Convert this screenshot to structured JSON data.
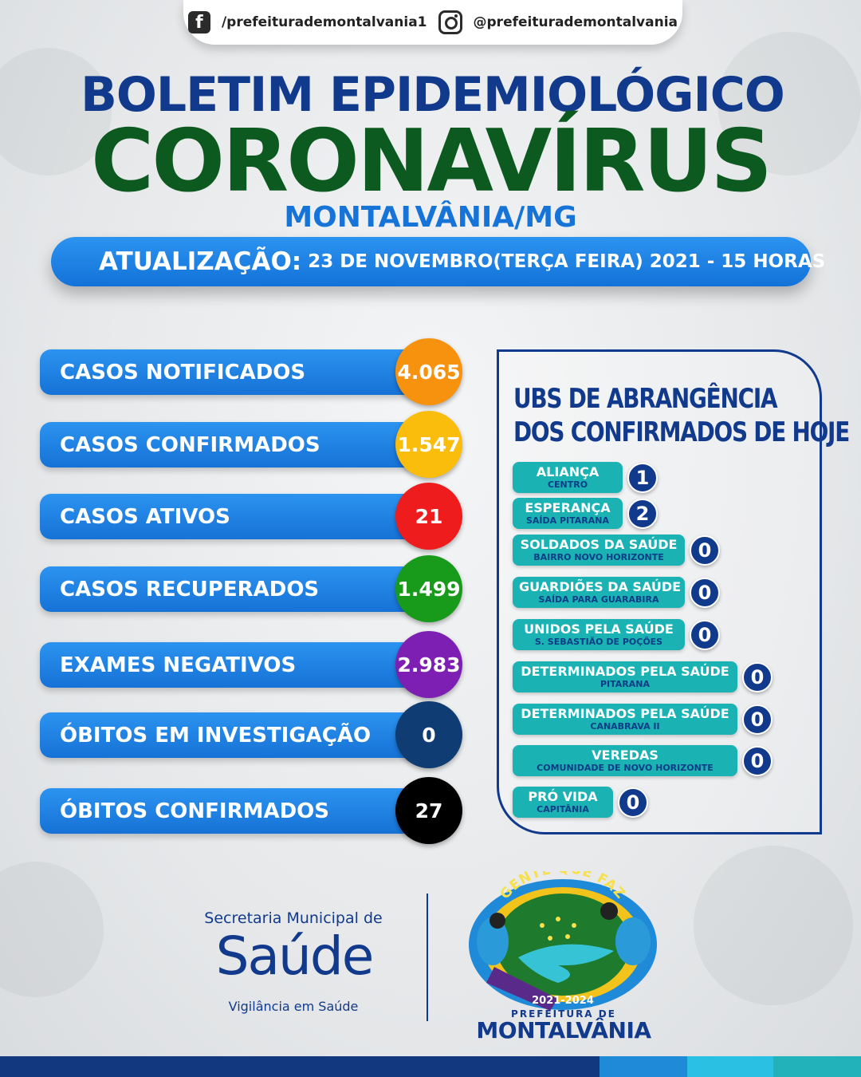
{
  "social": {
    "facebook": "/prefeiturademontalvania1",
    "instagram": "@prefeiturademontalvania"
  },
  "header": {
    "line1": "BOLETIM EPIDEMIOLÓGICO",
    "line2": "CORONAVÍRUS",
    "line3": "MONTALVÂNIA/MG"
  },
  "update": {
    "label": "ATUALIZAÇÃO:",
    "value": "23 DE NOVEMBRO(TERÇA FEIRA) 2021 - 15 HORAS"
  },
  "stats": [
    {
      "label": "CASOS NOTIFICADOS",
      "value": "4.065",
      "color": "#f7920f"
    },
    {
      "label": "CASOS CONFIRMADOS",
      "value": "1.547",
      "color": "#fbbd0c"
    },
    {
      "label": "CASOS ATIVOS",
      "value": "21",
      "color": "#ee1c1c"
    },
    {
      "label": "CASOS RECUPERADOS",
      "value": "1.499",
      "color": "#189a1b"
    },
    {
      "label": "EXAMES NEGATIVOS",
      "value": "2.983",
      "color": "#7e1fb4"
    },
    {
      "label": "ÓBITOS EM INVESTIGAÇÃO",
      "value": "0",
      "color": "#0f3c72"
    },
    {
      "label": "ÓBITOS CONFIRMADOS",
      "value": "27",
      "color": "#000000"
    }
  ],
  "ubs": {
    "title_line1": "UBS DE ABRANGÊNCIA",
    "title_line2": "DOS CONFIRMADOS DE HOJE",
    "items": [
      {
        "name": "ALIANÇA",
        "sub": "CENTRO",
        "count": "1"
      },
      {
        "name": "ESPERANÇA",
        "sub": "SAÍDA PITARANA",
        "count": "2"
      },
      {
        "name": "SOLDADOS DA SAÚDE",
        "sub": "BAIRRO NOVO HORIZONTE",
        "count": "0"
      },
      {
        "name": "GUARDIÕES DA SAÚDE",
        "sub": "SAÍDA PARA GUARABIRA",
        "count": "0"
      },
      {
        "name": "UNIDOS PELA SAÚDE",
        "sub": "S. SEBASTIÃO DE POÇÕES",
        "count": "0"
      },
      {
        "name": "DETERMINADOS PELA SAÚDE",
        "sub": "PITARANA",
        "count": "0"
      },
      {
        "name": "DETERMINADOS PELA SAÚDE",
        "sub": "CANABRAVA II",
        "count": "0"
      },
      {
        "name": "VEREDAS",
        "sub": "COMUNIDADE DE NOVO HORIZONTE",
        "count": "0"
      },
      {
        "name": "PRÓ VIDA",
        "sub": "CAPITÂNIA",
        "count": "0"
      }
    ]
  },
  "footer": {
    "secretaria_line1": "Secretaria Municipal de",
    "secretaria_line2": "Saúde",
    "secretaria_line3": "Vigilância em Saúde",
    "logo_slogan": "GENTE QUE FAZ",
    "logo_years": "2021-2024",
    "logo_caption1": "PREFEITURA DE",
    "logo_caption2": "MONTALVÂNIA"
  },
  "colors": {
    "navy": "#123a8c",
    "green": "#0c5a1f",
    "blue": "#1674d8",
    "teal": "#1bb2b4"
  }
}
